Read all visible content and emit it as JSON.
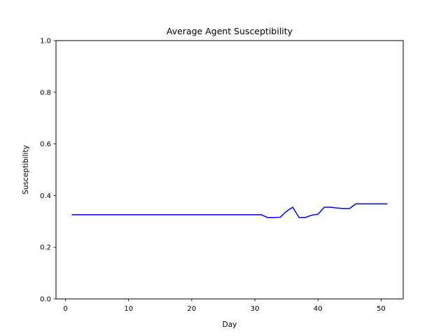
{
  "chart_data": {
    "type": "line",
    "title": "Average Agent Susceptibility",
    "xlabel": "Day",
    "ylabel": "Susceptibility",
    "xlim": [
      -1.5,
      53.5
    ],
    "ylim": [
      0.0,
      1.0
    ],
    "xticks": [
      0,
      10,
      20,
      30,
      40,
      50
    ],
    "xtick_labels": [
      "0",
      "10",
      "20",
      "30",
      "40",
      "50"
    ],
    "yticks": [
      0.0,
      0.2,
      0.4,
      0.6,
      0.8,
      1.0
    ],
    "ytick_labels": [
      "0.0",
      "0.2",
      "0.4",
      "0.6",
      "0.8",
      "1.0"
    ],
    "grid": false,
    "legend": "none",
    "series": [
      {
        "color": "#0000ff",
        "x": [
          1,
          2,
          3,
          4,
          5,
          6,
          7,
          8,
          9,
          10,
          11,
          12,
          13,
          14,
          15,
          16,
          17,
          18,
          19,
          20,
          21,
          22,
          23,
          24,
          25,
          26,
          27,
          28,
          29,
          30,
          31,
          32,
          33,
          34,
          35,
          36,
          37,
          38,
          39,
          40,
          41,
          42,
          43,
          44,
          45,
          46,
          47,
          48,
          49,
          50,
          51
        ],
        "y": [
          0.326,
          0.326,
          0.326,
          0.326,
          0.326,
          0.326,
          0.326,
          0.326,
          0.326,
          0.326,
          0.326,
          0.326,
          0.326,
          0.326,
          0.326,
          0.326,
          0.326,
          0.326,
          0.326,
          0.326,
          0.326,
          0.326,
          0.326,
          0.326,
          0.326,
          0.326,
          0.326,
          0.326,
          0.326,
          0.326,
          0.326,
          0.315,
          0.315,
          0.316,
          0.339,
          0.355,
          0.315,
          0.315,
          0.324,
          0.328,
          0.355,
          0.355,
          0.352,
          0.35,
          0.35,
          0.368,
          0.368,
          0.368,
          0.368,
          0.368,
          0.368
        ]
      }
    ]
  }
}
